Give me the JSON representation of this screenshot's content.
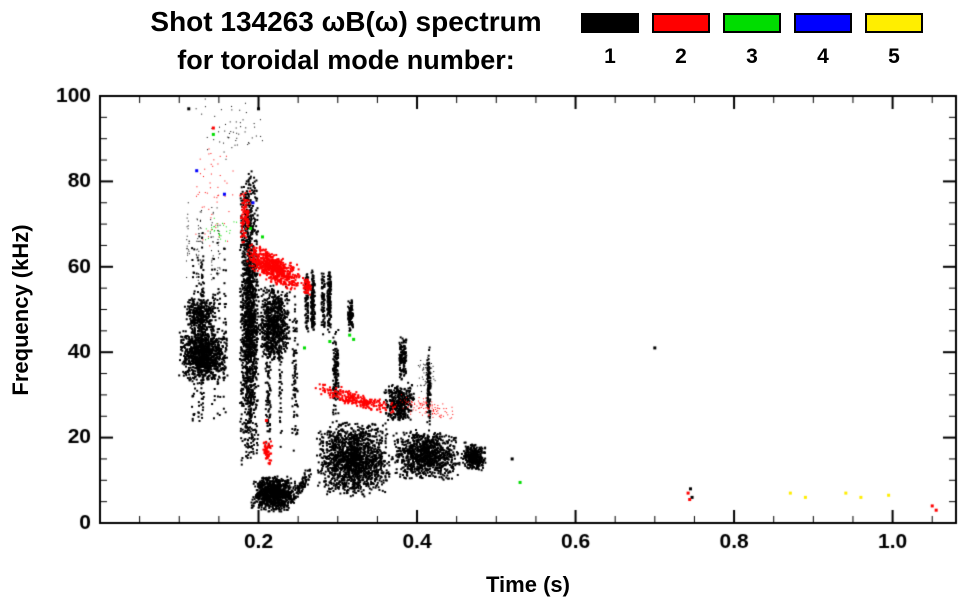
{
  "title": {
    "line1": "Shot 134263 ωB(ω) spectrum",
    "line2": "for toroidal mode number:"
  },
  "legend": {
    "position": "top-right",
    "items": [
      {
        "label": "1",
        "color": "#000000"
      },
      {
        "label": "2",
        "color": "#ff0000"
      },
      {
        "label": "3",
        "color": "#00dd00"
      },
      {
        "label": "4",
        "color": "#0000ff"
      },
      {
        "label": "5",
        "color": "#ffee00"
      }
    ]
  },
  "chart_data": {
    "type": "scatter",
    "title": "Shot 134263 ωB(ω) spectrum for toroidal mode number: 1 2 3 4 5",
    "xlabel": "Time (s)",
    "ylabel": "Frequency (kHz)",
    "xlim": [
      0.0,
      1.08
    ],
    "ylim": [
      0,
      100
    ],
    "grid": false,
    "xticks": {
      "values": [
        0.2,
        0.4,
        0.6,
        0.8,
        1.0
      ],
      "labels": [
        "0.2",
        "0.4",
        "0.6",
        "0.8",
        "1.0"
      ]
    },
    "yticks": {
      "values": [
        0,
        20,
        40,
        60,
        80,
        100
      ],
      "labels": [
        "0",
        "20",
        "40",
        "60",
        "80",
        "100"
      ]
    },
    "xminor": 0.05,
    "yminor": 5,
    "series": [
      {
        "name": "1",
        "color": "#000000",
        "clusters": [
          {
            "t": [
              0.099,
              0.163
            ],
            "f": [
              33,
              46
            ],
            "n": 1000
          },
          {
            "t": [
              0.106,
              0.148
            ],
            "f": [
              45,
              53
            ],
            "n": 300
          },
          {
            "t": [
              0.113,
              0.168
            ],
            "f": [
              20,
              70
            ],
            "n": 330,
            "streaks": 9
          },
          {
            "t": [
              0.1,
              0.17
            ],
            "f": [
              55,
              76
            ],
            "n": 110,
            "streaks": 5,
            "size": 1
          },
          {
            "t": [
              0.176,
              0.201
            ],
            "f": [
              12,
              84
            ],
            "n": 1600
          },
          {
            "t": [
              0.2,
              0.24
            ],
            "f": [
              37,
              56
            ],
            "n": 700
          },
          {
            "t": [
              0.205,
              0.248
            ],
            "f": [
              15,
              55
            ],
            "n": 260,
            "streaks": 6
          },
          {
            "t": [
              0.19,
              0.248
            ],
            "f": [
              2.5,
              11
            ],
            "n": 900
          },
          {
            "t": [
              0.24,
              0.268
            ],
            "f": [
              3,
              7
            ],
            "fEnd": [
              10,
              15
            ],
            "n": 80
          },
          {
            "t": [
              0.259,
              0.292
            ],
            "f": [
              44,
              60
            ],
            "n": 450,
            "streaks": 6
          },
          {
            "t": [
              0.288,
              0.3
            ],
            "f": [
              24,
              46
            ],
            "n": 140,
            "streaks": 2
          },
          {
            "t": [
              0.308,
              0.318
            ],
            "f": [
              44,
              53
            ],
            "n": 90,
            "streaks": 2
          },
          {
            "t": [
              0.272,
              0.367
            ],
            "f": [
              6,
              24
            ],
            "n": 1600
          },
          {
            "t": [
              0.367,
              0.455
            ],
            "f": [
              10,
              22
            ],
            "n": 1000
          },
          {
            "t": [
              0.455,
              0.487
            ],
            "f": [
              12,
              19
            ],
            "n": 320
          },
          {
            "t": [
              0.357,
              0.398
            ],
            "f": [
              23,
              33
            ],
            "n": 380
          },
          {
            "t": [
              0.377,
              0.391
            ],
            "f": [
              33,
              44
            ],
            "n": 130,
            "streaks": 2
          },
          {
            "t": [
              0.405,
              0.415
            ],
            "f": [
              22,
              42
            ],
            "n": 120,
            "streaks": 2
          },
          {
            "t": [
              0.4,
              0.425
            ],
            "f": [
              30,
              40
            ],
            "n": 60,
            "size": 1
          },
          {
            "t": [
              0.12,
              0.21
            ],
            "f": [
              84,
              100
            ],
            "n": 55,
            "size": 1
          }
        ],
        "singles": [
          [
            0.52,
            15
          ],
          [
            0.7,
            41
          ],
          [
            0.745,
            8
          ],
          [
            0.747,
            6
          ],
          [
            0.112,
            97
          ],
          [
            0.2,
            97
          ]
        ]
      },
      {
        "name": "2",
        "color": "#ff0000",
        "clusters": [
          {
            "t": [
              0.183,
              0.255
            ],
            "f": [
              59,
              67
            ],
            "fEnd": [
              53,
              60
            ],
            "n": 600
          },
          {
            "t": [
              0.255,
              0.268
            ],
            "f": [
              53,
              58
            ],
            "n": 60
          },
          {
            "t": [
              0.176,
              0.19
            ],
            "f": [
              65,
              79
            ],
            "n": 90
          },
          {
            "t": [
              0.118,
              0.172
            ],
            "f": [
              64,
              91
            ],
            "n": 55,
            "size": 1
          },
          {
            "t": [
              0.27,
              0.373
            ],
            "f": [
              30,
              34
            ],
            "fEnd": [
              24,
              28
            ],
            "n": 230
          },
          {
            "t": [
              0.373,
              0.45
            ],
            "f": [
              26,
              31
            ],
            "fEnd": [
              23,
              28
            ],
            "n": 110,
            "size": 1
          },
          {
            "t": [
              0.205,
              0.218
            ],
            "f": [
              13,
              20
            ],
            "n": 55
          }
        ],
        "singles": [
          [
            0.742,
            7
          ],
          [
            0.744,
            5.5
          ],
          [
            1.05,
            4
          ],
          [
            1.055,
            3
          ],
          [
            0.143,
            92.5
          ],
          [
            0.21,
            24
          ]
        ]
      },
      {
        "name": "3",
        "color": "#00dd00",
        "clusters": [
          {
            "t": [
              0.125,
              0.178
            ],
            "f": [
              65,
              72
            ],
            "n": 30,
            "size": 1
          }
        ],
        "singles": [
          [
            0.143,
            91
          ],
          [
            0.29,
            42.5
          ],
          [
            0.315,
            44
          ],
          [
            0.32,
            43
          ],
          [
            0.53,
            9.5
          ],
          [
            0.258,
            41
          ],
          [
            0.19,
            69
          ],
          [
            0.205,
            67
          ]
        ]
      },
      {
        "name": "4",
        "color": "#0000ff",
        "clusters": [],
        "singles": [
          [
            0.157,
            77
          ],
          [
            0.193,
            75
          ],
          [
            0.122,
            82.5
          ]
        ]
      },
      {
        "name": "5",
        "color": "#ffee00",
        "clusters": [],
        "singles": [
          [
            0.871,
            7
          ],
          [
            0.89,
            6
          ],
          [
            0.941,
            7
          ],
          [
            0.96,
            6
          ],
          [
            0.995,
            6.5
          ]
        ]
      }
    ]
  }
}
